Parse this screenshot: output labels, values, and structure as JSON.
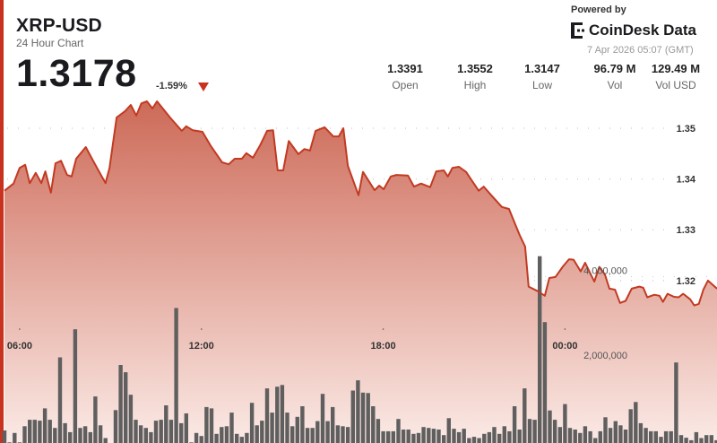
{
  "header": {
    "title": "XRP-USD",
    "subtitle": "24 Hour Chart",
    "price": "1.3178",
    "change": "-1.59%",
    "change_direction": "down",
    "powered_by": "Powered by",
    "logo_text": "CoinDesk Data",
    "timestamp": "7 Apr 2026 05:07 (GMT)"
  },
  "stats": [
    {
      "value": "1.3391",
      "label": "Open"
    },
    {
      "value": "1.3552",
      "label": "High"
    },
    {
      "value": "1.3147",
      "label": "Low"
    },
    {
      "value": "96.79 M",
      "label": "Vol"
    },
    {
      "value": "129.49 M",
      "label": "Vol USD"
    }
  ],
  "colors": {
    "accent": "#c8321f",
    "line": "#c23a22",
    "fill_top": "#cd6a58",
    "fill_bottom": "#fbeae6",
    "volume_bar": "#5f5f5f"
  },
  "chart_data": {
    "type": "area",
    "x_axis": {
      "type": "time",
      "tick_labels": [
        "06:00",
        "12:00",
        "18:00",
        "00:00"
      ],
      "range": [
        "05:30",
        "05:01"
      ]
    },
    "y_axis_price": {
      "tick_labels": [
        "1.35",
        "1.34",
        "1.33",
        "1.32"
      ],
      "ticks": [
        1.35,
        1.34,
        1.33,
        1.32
      ],
      "range": [
        1.288,
        1.3576
      ]
    },
    "y_axis_volume": {
      "tick_labels": [
        "4,000,000",
        "2,000,000"
      ],
      "ticks": [
        4000000,
        2000000
      ],
      "range": [
        0,
        8400000
      ]
    },
    "grid": true,
    "price_series": [
      [
        "05:30",
        1.3377
      ],
      [
        "05:48",
        1.3391
      ],
      [
        "06:00",
        1.3422
      ],
      [
        "06:11",
        1.3428
      ],
      [
        "06:20",
        1.3392
      ],
      [
        "06:32",
        1.3412
      ],
      [
        "06:43",
        1.3392
      ],
      [
        "06:51",
        1.3415
      ],
      [
        "07:02",
        1.3373
      ],
      [
        "07:11",
        1.3431
      ],
      [
        "07:22",
        1.3436
      ],
      [
        "07:34",
        1.3408
      ],
      [
        "07:43",
        1.3405
      ],
      [
        "07:52",
        1.344
      ],
      [
        "08:11",
        1.3463
      ],
      [
        "08:26",
        1.3435
      ],
      [
        "08:36",
        1.3417
      ],
      [
        "08:50",
        1.3392
      ],
      [
        "08:58",
        1.3422
      ],
      [
        "09:12",
        1.3521
      ],
      [
        "09:29",
        1.3534
      ],
      [
        "09:40",
        1.3546
      ],
      [
        "09:51",
        1.3525
      ],
      [
        "10:01",
        1.3549
      ],
      [
        "10:12",
        1.3553
      ],
      [
        "10:23",
        1.3539
      ],
      [
        "10:32",
        1.3553
      ],
      [
        "10:58",
        1.3521
      ],
      [
        "11:21",
        1.3495
      ],
      [
        "11:30",
        1.3504
      ],
      [
        "11:43",
        1.3496
      ],
      [
        "12:02",
        1.3493
      ],
      [
        "12:18",
        1.3466
      ],
      [
        "12:41",
        1.3433
      ],
      [
        "12:54",
        1.3429
      ],
      [
        "13:06",
        1.344
      ],
      [
        "13:20",
        1.344
      ],
      [
        "13:29",
        1.3451
      ],
      [
        "13:42",
        1.3442
      ],
      [
        "13:56",
        1.3466
      ],
      [
        "14:10",
        1.3495
      ],
      [
        "14:22",
        1.3496
      ],
      [
        "14:31",
        1.3417
      ],
      [
        "14:42",
        1.3417
      ],
      [
        "14:53",
        1.3475
      ],
      [
        "15:12",
        1.3449
      ],
      [
        "15:24",
        1.3459
      ],
      [
        "15:35",
        1.3456
      ],
      [
        "15:46",
        1.3495
      ],
      [
        "16:04",
        1.3502
      ],
      [
        "16:21",
        1.3484
      ],
      [
        "16:32",
        1.3484
      ],
      [
        "16:41",
        1.35
      ],
      [
        "16:50",
        1.3426
      ],
      [
        "17:11",
        1.3368
      ],
      [
        "17:20",
        1.3414
      ],
      [
        "17:43",
        1.3378
      ],
      [
        "17:52",
        1.3387
      ],
      [
        "18:01",
        1.338
      ],
      [
        "18:15",
        1.3405
      ],
      [
        "18:26",
        1.3408
      ],
      [
        "18:49",
        1.3407
      ],
      [
        "19:01",
        1.3385
      ],
      [
        "19:15",
        1.3391
      ],
      [
        "19:33",
        1.3384
      ],
      [
        "19:45",
        1.3415
      ],
      [
        "20:00",
        1.3417
      ],
      [
        "20:08",
        1.3405
      ],
      [
        "20:17",
        1.3422
      ],
      [
        "20:30",
        1.3424
      ],
      [
        "20:44",
        1.3414
      ],
      [
        "21:09",
        1.3377
      ],
      [
        "21:19",
        1.3385
      ],
      [
        "21:34",
        1.3368
      ],
      [
        "21:55",
        1.3345
      ],
      [
        "22:09",
        1.3341
      ],
      [
        "22:30",
        1.329
      ],
      [
        "22:41",
        1.3267
      ],
      [
        "22:48",
        1.3188
      ],
      [
        "23:06",
        1.3179
      ],
      [
        "23:20",
        1.317
      ],
      [
        "23:29",
        1.3205
      ],
      [
        "23:41",
        1.3207
      ],
      [
        "23:56",
        1.3228
      ],
      [
        "00:08",
        1.3242
      ],
      [
        "00:17",
        1.3241
      ],
      [
        "00:31",
        1.3218
      ],
      [
        "00:40",
        1.3235
      ],
      [
        "00:58",
        1.3198
      ],
      [
        "01:08",
        1.3227
      ],
      [
        "01:19",
        1.3212
      ],
      [
        "01:28",
        1.3184
      ],
      [
        "01:39",
        1.3182
      ],
      [
        "01:49",
        1.3156
      ],
      [
        "02:00",
        1.316
      ],
      [
        "02:12",
        1.3184
      ],
      [
        "02:27",
        1.3188
      ],
      [
        "02:35",
        1.3186
      ],
      [
        "02:43",
        1.3167
      ],
      [
        "02:57",
        1.3172
      ],
      [
        "03:07",
        1.317
      ],
      [
        "03:14",
        1.3158
      ],
      [
        "03:23",
        1.3174
      ],
      [
        "03:36",
        1.3168
      ],
      [
        "03:45",
        1.3167
      ],
      [
        "03:54",
        1.3174
      ],
      [
        "04:08",
        1.3163
      ],
      [
        "04:16",
        1.3151
      ],
      [
        "04:25",
        1.3154
      ],
      [
        "04:34",
        1.3182
      ],
      [
        "04:43",
        1.32
      ],
      [
        "05:01",
        1.3184
      ]
    ],
    "volume_series": {
      "start": "05:30",
      "interval_minutes": 10,
      "values": [
        380000,
        100000,
        320000,
        100000,
        480000,
        630000,
        630000,
        610000,
        900000,
        630000,
        440000,
        2100000,
        550000,
        340000,
        2760000,
        440000,
        480000,
        340000,
        1180000,
        500000,
        200000,
        50000,
        860000,
        1920000,
        1750000,
        1220000,
        630000,
        500000,
        440000,
        340000,
        610000,
        630000,
        970000,
        630000,
        3260000,
        550000,
        780000,
        100000,
        320000,
        250000,
        930000,
        900000,
        300000,
        460000,
        480000,
        800000,
        300000,
        230000,
        320000,
        1030000,
        500000,
        610000,
        1370000,
        800000,
        1410000,
        1450000,
        800000,
        480000,
        700000,
        950000,
        440000,
        440000,
        600000,
        1240000,
        600000,
        930000,
        500000,
        480000,
        460000,
        1320000,
        1560000,
        1270000,
        1260000,
        950000,
        650000,
        360000,
        360000,
        360000,
        650000,
        400000,
        400000,
        300000,
        320000,
        460000,
        440000,
        420000,
        400000,
        270000,
        670000,
        420000,
        340000,
        420000,
        200000,
        230000,
        200000,
        300000,
        340000,
        460000,
        300000,
        480000,
        360000,
        950000,
        400000,
        1370000,
        650000,
        630000,
        4480000,
        2930000,
        850000,
        630000,
        460000,
        1000000,
        440000,
        400000,
        320000,
        480000,
        360000,
        200000,
        360000,
        690000,
        440000,
        600000,
        500000,
        400000,
        880000,
        1050000,
        550000,
        440000,
        360000,
        360000,
        230000,
        360000,
        360000,
        1980000,
        270000,
        210000,
        150000,
        340000,
        200000,
        270000,
        270000,
        150000
      ]
    }
  }
}
